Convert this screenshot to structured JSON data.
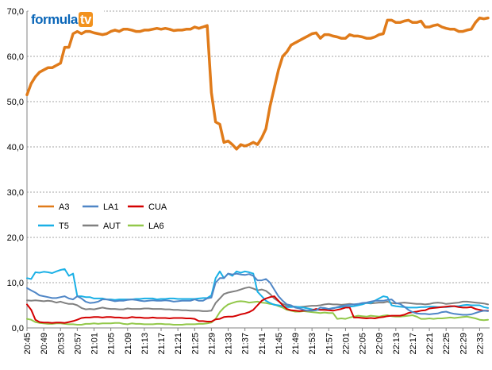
{
  "chart_data": {
    "type": "line",
    "title": "",
    "xlabel": "",
    "ylabel": "",
    "ylim": [
      0,
      70
    ],
    "yticks": [
      "0,0",
      "10,0",
      "20,0",
      "30,0",
      "40,0",
      "50,0",
      "60,0",
      "70,0"
    ],
    "grid": true,
    "legend_position": "center-left",
    "logo_text": {
      "part1": "formula",
      "part2": "tv"
    },
    "x": [
      "20:45",
      "20:46",
      "20:47",
      "20:48",
      "20:49",
      "20:50",
      "20:51",
      "20:52",
      "20:53",
      "20:54",
      "20:55",
      "20:56",
      "20:57",
      "20:58",
      "20:59",
      "21:00",
      "21:01",
      "21:02",
      "21:03",
      "21:04",
      "21:05",
      "21:06",
      "21:07",
      "21:08",
      "21:09",
      "21:10",
      "21:11",
      "21:12",
      "21:13",
      "21:14",
      "21:15",
      "21:16",
      "21:17",
      "21:18",
      "21:19",
      "21:20",
      "21:21",
      "21:22",
      "21:23",
      "21:24",
      "21:25",
      "21:26",
      "21:27",
      "21:28",
      "21:29",
      "21:30",
      "21:31",
      "21:32",
      "21:33",
      "21:34",
      "21:35",
      "21:36",
      "21:37",
      "21:38",
      "21:39",
      "21:40",
      "21:41",
      "21:42",
      "21:43",
      "21:44",
      "21:45",
      "21:46",
      "21:47",
      "21:48",
      "21:49",
      "21:50",
      "21:51",
      "21:52",
      "21:53",
      "21:54",
      "21:55",
      "21:56",
      "21:57",
      "21:58",
      "21:59",
      "22:00",
      "22:01",
      "22:02",
      "22:03",
      "22:04",
      "22:05",
      "22:06",
      "22:07",
      "22:08",
      "22:09",
      "22:10",
      "22:11",
      "22:12",
      "22:13",
      "22:14",
      "22:15",
      "22:16",
      "22:17",
      "22:18",
      "22:19",
      "22:20",
      "22:21",
      "22:22",
      "22:23",
      "22:24",
      "22:25",
      "22:26",
      "22:27",
      "22:28",
      "22:29",
      "22:30",
      "22:31",
      "22:32",
      "22:33",
      "22:34",
      "22:35"
    ],
    "xtick_labels": [
      "20:45",
      "20:49",
      "20:53",
      "20:57",
      "21:01",
      "21:05",
      "21:09",
      "21:13",
      "21:17",
      "21:21",
      "21:25",
      "21:29",
      "21:33",
      "21:37",
      "21:41",
      "21:45",
      "21:49",
      "21:53",
      "21:57",
      "22:01",
      "22:05",
      "22:09",
      "22:13",
      "22:17",
      "22:21",
      "22:25",
      "22:29",
      "22:33"
    ],
    "series": [
      {
        "name": "A3",
        "color": "#e07b1a",
        "values": [
          51.5,
          54,
          55.5,
          56.5,
          57,
          57.5,
          57.5,
          58,
          58.5,
          62,
          62,
          65,
          65.5,
          65,
          65.5,
          65.5,
          65.2,
          65,
          64.8,
          65,
          65.5,
          65.8,
          65.5,
          66,
          66,
          65.8,
          65.5,
          65.5,
          65.8,
          65.8,
          66,
          66.2,
          66,
          66.2,
          66,
          65.7,
          65.8,
          65.8,
          66,
          66,
          66.5,
          66.2,
          66.5,
          66.8,
          52,
          45.5,
          45,
          41,
          41.3,
          40.5,
          39.5,
          40.5,
          40.2,
          40.5,
          41,
          40.5,
          42,
          44,
          49,
          53,
          57,
          60,
          61,
          62.5,
          63,
          63.5,
          64,
          64.5,
          65,
          65.2,
          64,
          64.8,
          64.8,
          64.5,
          64.3,
          64,
          64,
          64.8,
          64.5,
          64.5,
          64.3,
          64,
          64,
          64.3,
          64.8,
          65,
          68,
          68,
          67.5,
          67.5,
          67.8,
          68,
          67.5,
          67.5,
          67.8,
          66.5,
          66.5,
          66.8,
          67,
          66.5,
          66.2,
          66,
          66,
          65.5,
          65.5,
          65.8,
          66,
          67.5,
          68.5,
          68.3,
          68.5
        ]
      },
      {
        "name": "LA1",
        "color": "#4f86c6",
        "values": [
          8.8,
          8.3,
          7.8,
          7.2,
          7,
          6.8,
          6.6,
          6.6,
          6.8,
          7,
          6.5,
          6.3,
          7,
          6.5,
          5.8,
          5.5,
          5.6,
          5.8,
          6.3,
          6.3,
          6.1,
          5.9,
          6,
          6,
          6.2,
          6.3,
          6.2,
          6,
          5.9,
          6,
          6.1,
          6,
          6,
          6.1,
          6,
          5.8,
          5.9,
          6,
          6,
          6,
          6.3,
          6,
          6,
          6.5,
          6.7,
          10,
          11,
          11,
          12,
          11.8,
          12,
          11.8,
          11.7,
          11.9,
          11.5,
          10.5,
          10.5,
          10.8,
          10,
          8.5,
          7,
          6,
          5.2,
          5,
          4.5,
          4.3,
          4,
          3.8,
          3.8,
          3.9,
          4.5,
          4.4,
          4.2,
          4.3,
          4.6,
          4.8,
          5,
          5.1,
          5.2,
          5.3,
          5.5,
          5.6,
          5.8,
          6,
          6,
          6,
          6.2,
          6.3,
          5.5,
          5.3,
          4.7,
          4,
          3.5,
          3.2,
          3.1,
          3.1,
          3,
          3.1,
          3.2,
          3.5,
          3.6,
          3.3,
          3.1,
          3,
          2.9,
          2.9,
          3,
          3.3,
          3.6,
          3.8,
          3.7
        ]
      },
      {
        "name": "CUA",
        "color": "#d40000",
        "values": [
          5.2,
          4,
          1.8,
          1.3,
          1.2,
          1.2,
          1.1,
          1.2,
          1.2,
          1.1,
          1.3,
          1.5,
          1.8,
          2.2,
          2.3,
          2.3,
          2.4,
          2.4,
          2.3,
          2.4,
          2.4,
          2.3,
          2.3,
          2.2,
          2.2,
          2.4,
          2.3,
          2.3,
          2.2,
          2.2,
          2.3,
          2.2,
          2.2,
          2.2,
          2.1,
          2.2,
          2.2,
          2.2,
          2.1,
          2.1,
          2,
          1.5,
          1.5,
          1.4,
          1.4,
          1.9,
          2,
          2.4,
          2.5,
          2.5,
          2.7,
          3,
          3.2,
          3.5,
          4,
          5,
          6,
          6.5,
          6.8,
          7,
          6,
          5,
          4.2,
          3.9,
          3.8,
          3.7,
          3.8,
          3.8,
          3.9,
          4.2,
          4,
          4,
          3.9,
          3.8,
          4,
          4.2,
          4.5,
          4.5,
          2.3,
          2.3,
          2.2,
          2.1,
          2.2,
          2.1,
          2.3,
          2.4,
          2.6,
          2.7,
          2.7,
          2.7,
          2.9,
          3.3,
          3.5,
          3.6,
          3.8,
          3.9,
          4.3,
          4.4,
          4.5,
          4.6,
          4.7,
          4.8,
          4.8,
          4.6,
          4.5,
          4.5,
          4.6,
          4.2,
          4,
          3.8,
          3.8
        ]
      },
      {
        "name": "T5",
        "color": "#1ab0e6",
        "values": [
          11,
          10.8,
          12.3,
          12.2,
          12.4,
          12.3,
          12.1,
          12.5,
          12.8,
          13,
          11.5,
          12,
          7,
          7,
          6.8,
          6.8,
          6.5,
          6.5,
          6.5,
          6.3,
          6.3,
          6.2,
          6.3,
          6.3,
          6.3,
          6.3,
          6.4,
          6.4,
          6.5,
          6.5,
          6.5,
          6.3,
          6.4,
          6.4,
          6.5,
          6.5,
          6.4,
          6.4,
          6.4,
          6.4,
          6.4,
          6.5,
          6.6,
          6.6,
          7.2,
          11,
          12.5,
          11,
          12,
          11.5,
          12.5,
          12.2,
          12.5,
          12.3,
          12,
          8,
          7,
          6,
          5.5,
          5.1,
          5,
          4.8,
          4.6,
          4.6,
          4.7,
          4.6,
          4.5,
          4.3,
          4.1,
          4,
          4,
          4.2,
          4.2,
          4.4,
          4.5,
          4.6,
          4.6,
          4.7,
          4.8,
          5,
          5.2,
          5.5,
          5.5,
          6,
          6.5,
          7,
          6.8,
          5,
          4.8,
          4.7,
          4.6,
          4.5,
          4.5,
          4.5,
          4.6,
          4.6,
          4.7,
          4.7,
          4.6,
          4.6,
          4.6,
          4.7,
          4.8,
          4.8,
          5,
          5.1,
          5,
          5,
          5,
          4.6,
          4.4
        ]
      },
      {
        "name": "AUT",
        "color": "#808080",
        "values": [
          6.1,
          6,
          6.1,
          6,
          5.9,
          6,
          5.9,
          5.6,
          5.8,
          5.5,
          5.3,
          5.3,
          5,
          4.4,
          4.1,
          4.2,
          4.1,
          4.3,
          4.5,
          4.3,
          4.2,
          4.2,
          4.1,
          4.1,
          4.3,
          4.2,
          4.2,
          4.2,
          4.3,
          4.3,
          4.2,
          4.2,
          4.2,
          4.1,
          4.1,
          4,
          4,
          3.9,
          3.9,
          3.8,
          3.8,
          3.8,
          3.7,
          3.7,
          3.8,
          5.5,
          6.5,
          7.5,
          7.8,
          8,
          8.2,
          8.5,
          8.8,
          9,
          8.7,
          8.3,
          8.5,
          8.2,
          7.5,
          6.5,
          5.9,
          5.3,
          5,
          4.8,
          4.7,
          4.6,
          4.7,
          4.8,
          4.9,
          4.9,
          5,
          5.2,
          5.3,
          5.2,
          5.2,
          5.1,
          5.2,
          5.3,
          5.2,
          5.2,
          5.4,
          5.5,
          5.4,
          5.5,
          5.6,
          5.6,
          5.8,
          5.5,
          5.4,
          5.5,
          5.6,
          5.5,
          5.4,
          5.3,
          5.3,
          5.2,
          5.3,
          5.5,
          5.6,
          5.5,
          5.3,
          5.4,
          5.5,
          5.6,
          5.8,
          5.8,
          5.7,
          5.6,
          5.5,
          5.4,
          5.2
        ]
      },
      {
        "name": "LA6",
        "color": "#92c84a",
        "values": [
          2,
          1.8,
          1.3,
          1.1,
          1,
          0.9,
          0.9,
          1,
          1,
          0.9,
          0.8,
          0.8,
          0.7,
          0.7,
          0.9,
          0.9,
          1,
          0.9,
          1,
          1,
          1,
          1.1,
          1.1,
          0.9,
          0.8,
          1,
          0.9,
          0.9,
          0.8,
          0.8,
          0.8,
          0.9,
          0.9,
          0.8,
          0.8,
          0.7,
          0.7,
          0.7,
          0.8,
          0.8,
          0.8,
          0.9,
          0.9,
          1,
          1.2,
          2,
          3.5,
          4.5,
          5.2,
          5.5,
          5.8,
          5.9,
          5.8,
          5.6,
          5.7,
          5.8,
          5.6,
          5.5,
          5.3,
          5.2,
          4.8,
          4.5,
          4,
          3.8,
          3.6,
          3.6,
          3.7,
          3.6,
          3.5,
          3.4,
          3.3,
          3.4,
          3.3,
          3.3,
          2,
          2.1,
          2,
          2.3,
          2.5,
          2.7,
          2.6,
          2.5,
          2.7,
          2.6,
          2.5,
          2.7,
          2.8,
          2.6,
          2.5,
          2.5,
          2.6,
          2.7,
          2.8,
          2.5,
          2,
          2,
          2.1,
          2,
          2.1,
          2.1,
          2.2,
          2.3,
          2.2,
          2.3,
          2.4,
          2.5,
          2.3,
          2.1,
          1.8,
          1.7,
          1.8
        ]
      }
    ]
  }
}
